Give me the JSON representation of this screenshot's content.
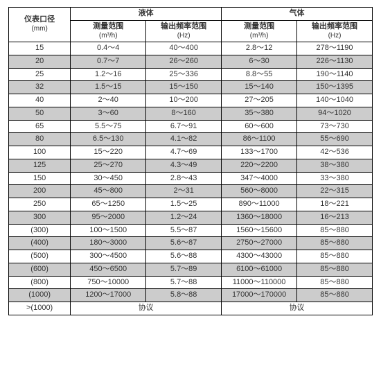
{
  "header": {
    "col0_line1": "仪表口径",
    "col0_line2": "(mm)",
    "group_liquid": "液体",
    "group_gas": "气体",
    "sub_range_label": "测量范围",
    "sub_range_unit": "(m³/h)",
    "sub_freq_label": "输出频率范围",
    "sub_freq_unit": "(Hz)"
  },
  "rows": [
    {
      "d": "15",
      "lr": "0.4～4",
      "lf": "40～400",
      "gr": "2.8～12",
      "gf": "278～1190",
      "shade": false
    },
    {
      "d": "20",
      "lr": "0.7～7",
      "lf": "26～260",
      "gr": "6～30",
      "gf": "226～1130",
      "shade": true
    },
    {
      "d": "25",
      "lr": "1.2～16",
      "lf": "25～336",
      "gr": "8.8～55",
      "gf": "190～1140",
      "shade": false
    },
    {
      "d": "32",
      "lr": "1.5～15",
      "lf": "15～150",
      "gr": "15～140",
      "gf": "150～1395",
      "shade": true
    },
    {
      "d": "40",
      "lr": "2～40",
      "lf": "10～200",
      "gr": "27～205",
      "gf": "140～1040",
      "shade": false
    },
    {
      "d": "50",
      "lr": "3～60",
      "lf": "8～160",
      "gr": "35～380",
      "gf": "94～1020",
      "shade": true
    },
    {
      "d": "65",
      "lr": "5.5～75",
      "lf": "6.7～91",
      "gr": "60～600",
      "gf": "73～730",
      "shade": false
    },
    {
      "d": "80",
      "lr": "6.5～130",
      "lf": "4.1～82",
      "gr": "86～1100",
      "gf": "55～690",
      "shade": true
    },
    {
      "d": "100",
      "lr": "15～220",
      "lf": "4.7～69",
      "gr": "133～1700",
      "gf": "42～536",
      "shade": false
    },
    {
      "d": "125",
      "lr": "25～270",
      "lf": "4.3～49",
      "gr": "220～2200",
      "gf": "38～380",
      "shade": true
    },
    {
      "d": "150",
      "lr": "30～450",
      "lf": "2.8～43",
      "gr": "347～4000",
      "gf": "33～380",
      "shade": false
    },
    {
      "d": "200",
      "lr": "45～800",
      "lf": "2～31",
      "gr": "560～8000",
      "gf": "22～315",
      "shade": true
    },
    {
      "d": "250",
      "lr": "65～1250",
      "lf": "1.5～25",
      "gr": "890～11000",
      "gf": "18～221",
      "shade": false
    },
    {
      "d": "300",
      "lr": "95～2000",
      "lf": "1.2～24",
      "gr": "1360～18000",
      "gf": "16～213",
      "shade": true
    },
    {
      "d": "(300)",
      "lr": "100～1500",
      "lf": "5.5～87",
      "gr": "1560～15600",
      "gf": "85～880",
      "shade": false
    },
    {
      "d": "(400)",
      "lr": "180～3000",
      "lf": "5.6～87",
      "gr": "2750～27000",
      "gf": "85～880",
      "shade": true
    },
    {
      "d": "(500)",
      "lr": "300～4500",
      "lf": "5.6～88",
      "gr": "4300～43000",
      "gf": "85～880",
      "shade": false
    },
    {
      "d": "(600)",
      "lr": "450～6500",
      "lf": "5.7～89",
      "gr": "6100～61000",
      "gf": "85～880",
      "shade": true
    },
    {
      "d": "(800)",
      "lr": "750～10000",
      "lf": "5.7～88",
      "gr": "11000～110000",
      "gf": "85～880",
      "shade": false
    },
    {
      "d": "(1000)",
      "lr": "1200～17000",
      "lf": "5.8～88",
      "gr": "17000～170000",
      "gf": "85～880",
      "shade": true
    }
  ],
  "lastRow": {
    "d": ">(1000)",
    "liquid": "协议",
    "gas": "协议"
  }
}
